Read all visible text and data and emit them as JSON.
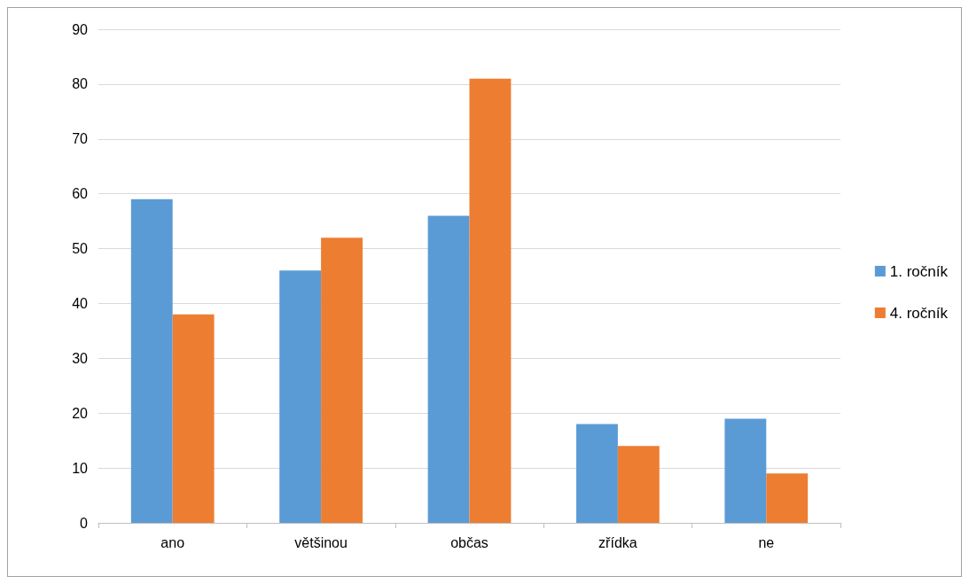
{
  "chart_data": {
    "type": "bar",
    "categories": [
      "ano",
      "většinou",
      "občas",
      "zřídka",
      "ne"
    ],
    "series": [
      {
        "name": "1. ročník",
        "color": "#5b9bd5",
        "values": [
          59,
          46,
          56,
          18,
          19
        ]
      },
      {
        "name": "4. ročník",
        "color": "#ed7d31",
        "values": [
          38,
          52,
          81,
          14,
          9
        ]
      }
    ],
    "ylim": [
      0,
      90
    ],
    "yticks": [
      0,
      10,
      20,
      30,
      40,
      50,
      60,
      70,
      80,
      90
    ],
    "grid": "y",
    "legend": "right"
  }
}
